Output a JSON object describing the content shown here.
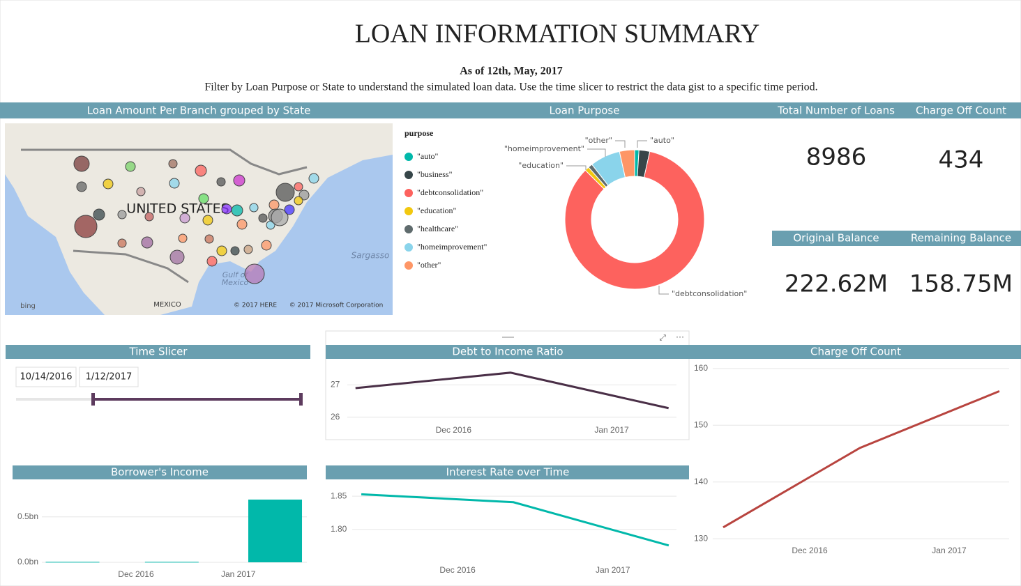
{
  "header": {
    "title": "LOAN INFORMATION SUMMARY",
    "date": "As of 12th, May, 2017",
    "subtitle": "Filter by Loan Purpose or State to understand the simulated loan data. Use the time slicer to restrict the data gist to a specific time period."
  },
  "map": {
    "title": "Loan Amount Per Branch grouped by State",
    "labels": [
      "UNITED STATES",
      "Sargasso",
      "Gulf of",
      "Mexico",
      "MEXICO",
      "© 2017 HERE",
      "© 2017 Microsoft Corporation",
      "bing"
    ]
  },
  "kpis": [
    {
      "title": "Total Number of Loans",
      "value": 8986
    },
    {
      "title": "Charge Off Count",
      "value": 434
    },
    {
      "title": "Original Balance",
      "value": "222.62M"
    },
    {
      "title": "Remaining Balance",
      "value": "158.75M"
    }
  ],
  "slicer": {
    "title": "Time Slicer",
    "start": "10/14/2016",
    "end": "1/12/2017"
  },
  "chart_data": [
    {
      "type": "pie",
      "title": "Loan Purpose",
      "legend_title": "purpose",
      "categories": [
        "\"auto\"",
        "\"business\"",
        "\"debtconsolidation\"",
        "\"education\"",
        "\"healthcare\"",
        "\"homeimprovement\"",
        "\"other\""
      ],
      "values": [
        1,
        2.5,
        84,
        1,
        1,
        7,
        3.5
      ],
      "colors": [
        "#01B8AA",
        "#374649",
        "#FD625E",
        "#F2C80F",
        "#5F6B6D",
        "#8AD4EB",
        "#FE9666"
      ]
    },
    {
      "type": "line",
      "title": "Debt to Income Ratio",
      "x": [
        -0.62,
        0.36,
        1.36
      ],
      "values": [
        26.9,
        27.38,
        26.28
      ],
      "color": "#4a2f47",
      "xlim": [
        -0.76,
        1.41
      ],
      "xticks": [
        {
          "value": 0,
          "label": "Dec 2016"
        },
        {
          "value": 1,
          "label": "Jan 2017"
        }
      ],
      "ylim": [
        25.8,
        27.7
      ],
      "yticks": [
        26,
        27
      ],
      "grid": true
    },
    {
      "type": "line",
      "title": "Interest Rate over Time",
      "x": [
        -0.62,
        0.36,
        1.36
      ],
      "values": [
        1.853,
        1.841,
        1.776
      ],
      "color": "#01B8AA",
      "xlim": [
        -0.8,
        1.41
      ],
      "xticks": [
        {
          "value": 0,
          "label": "Dec 2016"
        },
        {
          "value": 1,
          "label": "Jan 2017"
        }
      ],
      "ylim": [
        1.758,
        1.868
      ],
      "yticks": [
        {
          "value": 1.8,
          "label": "1.80"
        },
        1.85
      ],
      "grid": true
    },
    {
      "type": "line",
      "title": "Charge Off Count",
      "x": [
        -0.62,
        0.36,
        1.36
      ],
      "values": [
        132,
        146,
        156
      ],
      "color": "#b8443f",
      "xlim": [
        -0.83,
        1.43
      ],
      "xticks": [
        {
          "value": 0,
          "label": "Dec 2016"
        },
        {
          "value": 1,
          "label": "Jan 2017"
        }
      ],
      "ylim": [
        126.7,
        161.7
      ],
      "yticks": [
        130,
        140,
        150,
        160
      ],
      "grid": true
    },
    {
      "type": "bar",
      "title": "Borrower's Income",
      "x": [
        -0.62,
        0.35,
        1.36
      ],
      "values": [
        0.005,
        0.005,
        0.69
      ],
      "color": "#01B8AA",
      "xlim": [
        -0.92,
        1.67
      ],
      "xticks": [
        {
          "value": 0,
          "label": "Dec 2016"
        },
        {
          "value": 1,
          "label": "Jan 2017"
        }
      ],
      "ylim": [
        0,
        0.82
      ],
      "yticks": [
        {
          "value": 0,
          "label": "0.0bn"
        },
        {
          "value": 0.5,
          "label": "0.5bn"
        }
      ],
      "grid": true
    }
  ]
}
